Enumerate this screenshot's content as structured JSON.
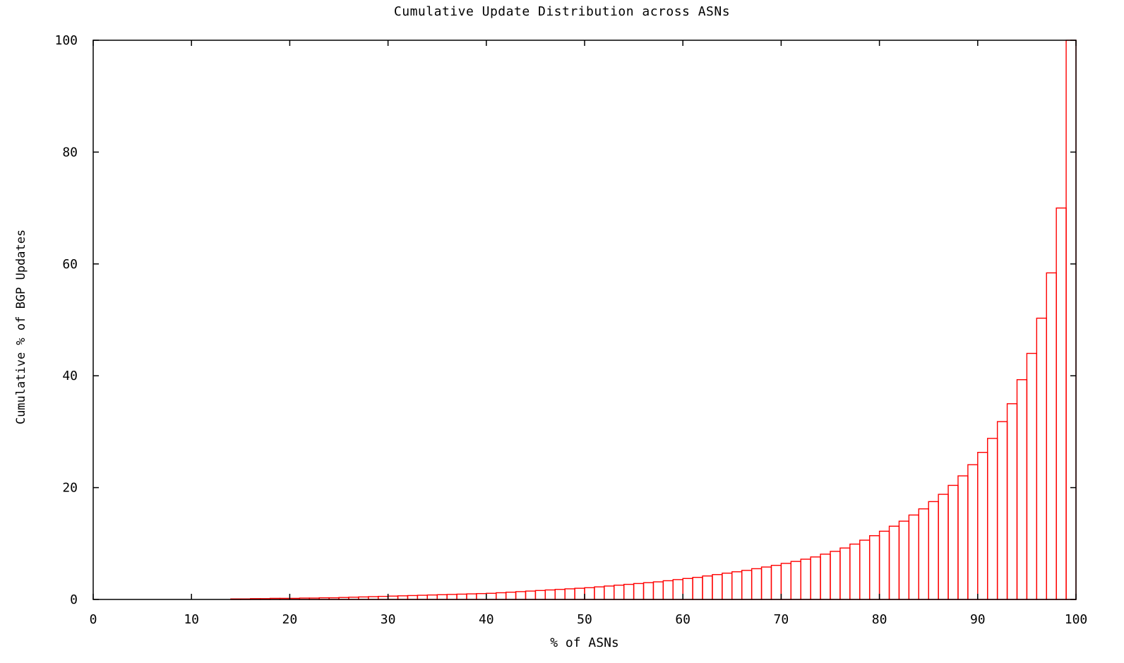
{
  "chart_data": {
    "type": "bar",
    "title": "Cumulative Update Distribution across ASNs",
    "xlabel": "% of ASNs",
    "ylabel": "Cumulative % of BGP Updates",
    "xlim": [
      0,
      100
    ],
    "ylim": [
      0,
      100
    ],
    "x_ticks": [
      "0",
      "10",
      "20",
      "30",
      "40",
      "50",
      "60",
      "70",
      "80",
      "90",
      "100"
    ],
    "y_ticks": [
      "0",
      "20",
      "40",
      "60",
      "80",
      "100"
    ],
    "grid": false,
    "legend": "none",
    "bar_color": "#ff0000",
    "bin_width": 1,
    "x": [
      14,
      15,
      16,
      17,
      18,
      19,
      20,
      21,
      22,
      23,
      24,
      25,
      26,
      27,
      28,
      29,
      30,
      31,
      32,
      33,
      34,
      35,
      36,
      37,
      38,
      39,
      40,
      41,
      42,
      43,
      44,
      45,
      46,
      47,
      48,
      49,
      50,
      51,
      52,
      53,
      54,
      55,
      56,
      57,
      58,
      59,
      60,
      61,
      62,
      63,
      64,
      65,
      66,
      67,
      68,
      69,
      70,
      71,
      72,
      73,
      74,
      75,
      76,
      77,
      78,
      79,
      80,
      81,
      82,
      83,
      84,
      85,
      86,
      87,
      88,
      89,
      90,
      91,
      92,
      93,
      94,
      95,
      96,
      97,
      98,
      99
    ],
    "values": [
      0.1,
      0.1,
      0.15,
      0.15,
      0.2,
      0.2,
      0.2,
      0.25,
      0.25,
      0.3,
      0.3,
      0.35,
      0.4,
      0.45,
      0.5,
      0.55,
      0.6,
      0.65,
      0.7,
      0.75,
      0.8,
      0.85,
      0.9,
      0.95,
      1.0,
      1.05,
      1.1,
      1.2,
      1.3,
      1.4,
      1.5,
      1.6,
      1.7,
      1.8,
      1.9,
      2.0,
      2.1,
      2.25,
      2.4,
      2.55,
      2.7,
      2.85,
      3.0,
      3.15,
      3.35,
      3.55,
      3.75,
      3.95,
      4.2,
      4.45,
      4.7,
      4.95,
      5.2,
      5.5,
      5.8,
      6.1,
      6.45,
      6.8,
      7.2,
      7.6,
      8.1,
      8.6,
      9.2,
      9.9,
      10.6,
      11.4,
      12.2,
      13.1,
      14.0,
      15.1,
      16.2,
      17.5,
      18.8,
      20.4,
      22.1,
      24.1,
      26.3,
      28.8,
      31.8,
      35.0,
      39.3,
      44.0,
      50.3,
      58.4,
      70.0,
      100.0
    ]
  }
}
